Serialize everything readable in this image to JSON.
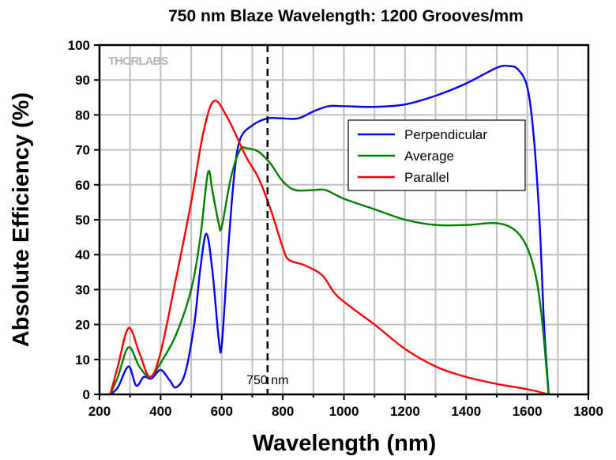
{
  "chart_data": {
    "type": "line",
    "title": "750 nm Blaze Wavelength: 1200 Grooves/mm",
    "xlabel": "Wavelength (nm)",
    "ylabel": "Absolute Efficiency (%)",
    "xlim": [
      200,
      1800
    ],
    "ylim": [
      0,
      100
    ],
    "xticks": [
      200,
      400,
      600,
      800,
      1000,
      1200,
      1400,
      1600,
      1800
    ],
    "yticks": [
      0,
      10,
      20,
      30,
      40,
      50,
      60,
      70,
      80,
      90,
      100
    ],
    "grid": true,
    "legend_position": "right-upper",
    "watermark": "THORLABS",
    "annotation": {
      "x": 750,
      "label": "750 nm",
      "style": "dashed vertical line"
    },
    "series": [
      {
        "name": "Perpendicular",
        "color": "#0000ff",
        "x": [
          235,
          260,
          295,
          320,
          345,
          370,
          400,
          430,
          450,
          480,
          510,
          530,
          550,
          570,
          590,
          600,
          620,
          640,
          660,
          700,
          750,
          800,
          850,
          900,
          950,
          1000,
          1100,
          1200,
          1300,
          1400,
          1500,
          1540,
          1570,
          1600,
          1620,
          1640,
          1655,
          1670
        ],
        "y": [
          0,
          2,
          8,
          2.5,
          5,
          4.5,
          7,
          4,
          2,
          6,
          20,
          36,
          46,
          35,
          16,
          14,
          40,
          62,
          73,
          77,
          79,
          79,
          79,
          81,
          82.5,
          82.5,
          82.3,
          83,
          85.5,
          89,
          93.5,
          94,
          93,
          88,
          75,
          50,
          20,
          0
        ]
      },
      {
        "name": "Average",
        "color": "#008000",
        "x": [
          235,
          260,
          295,
          330,
          365,
          400,
          450,
          500,
          530,
          555,
          570,
          590,
          600,
          630,
          660,
          680,
          720,
          760,
          800,
          840,
          900,
          940,
          1000,
          1100,
          1200,
          1300,
          1400,
          1500,
          1560,
          1600,
          1630,
          1650,
          1670
        ],
        "y": [
          0,
          5,
          13.5,
          8,
          5,
          9,
          17,
          30,
          45,
          63.5,
          58,
          49,
          48,
          62,
          70,
          70.5,
          69.5,
          66,
          61,
          58.5,
          58.5,
          58.5,
          56,
          53,
          50,
          48.5,
          48.5,
          49,
          47,
          42,
          33,
          20,
          0
        ]
      },
      {
        "name": "Parallel",
        "color": "#ff0000",
        "x": [
          235,
          260,
          295,
          330,
          365,
          400,
          450,
          500,
          540,
          575,
          620,
          680,
          720,
          760,
          800,
          820,
          870,
          930,
          980,
          1100,
          1200,
          1300,
          1400,
          1500,
          1600,
          1670
        ],
        "y": [
          0,
          8,
          19,
          12,
          5,
          12,
          33,
          55,
          75,
          84,
          79,
          68,
          62,
          53,
          42,
          38.5,
          37,
          34,
          28,
          20,
          13,
          8,
          5,
          3,
          1.5,
          0
        ]
      }
    ]
  }
}
